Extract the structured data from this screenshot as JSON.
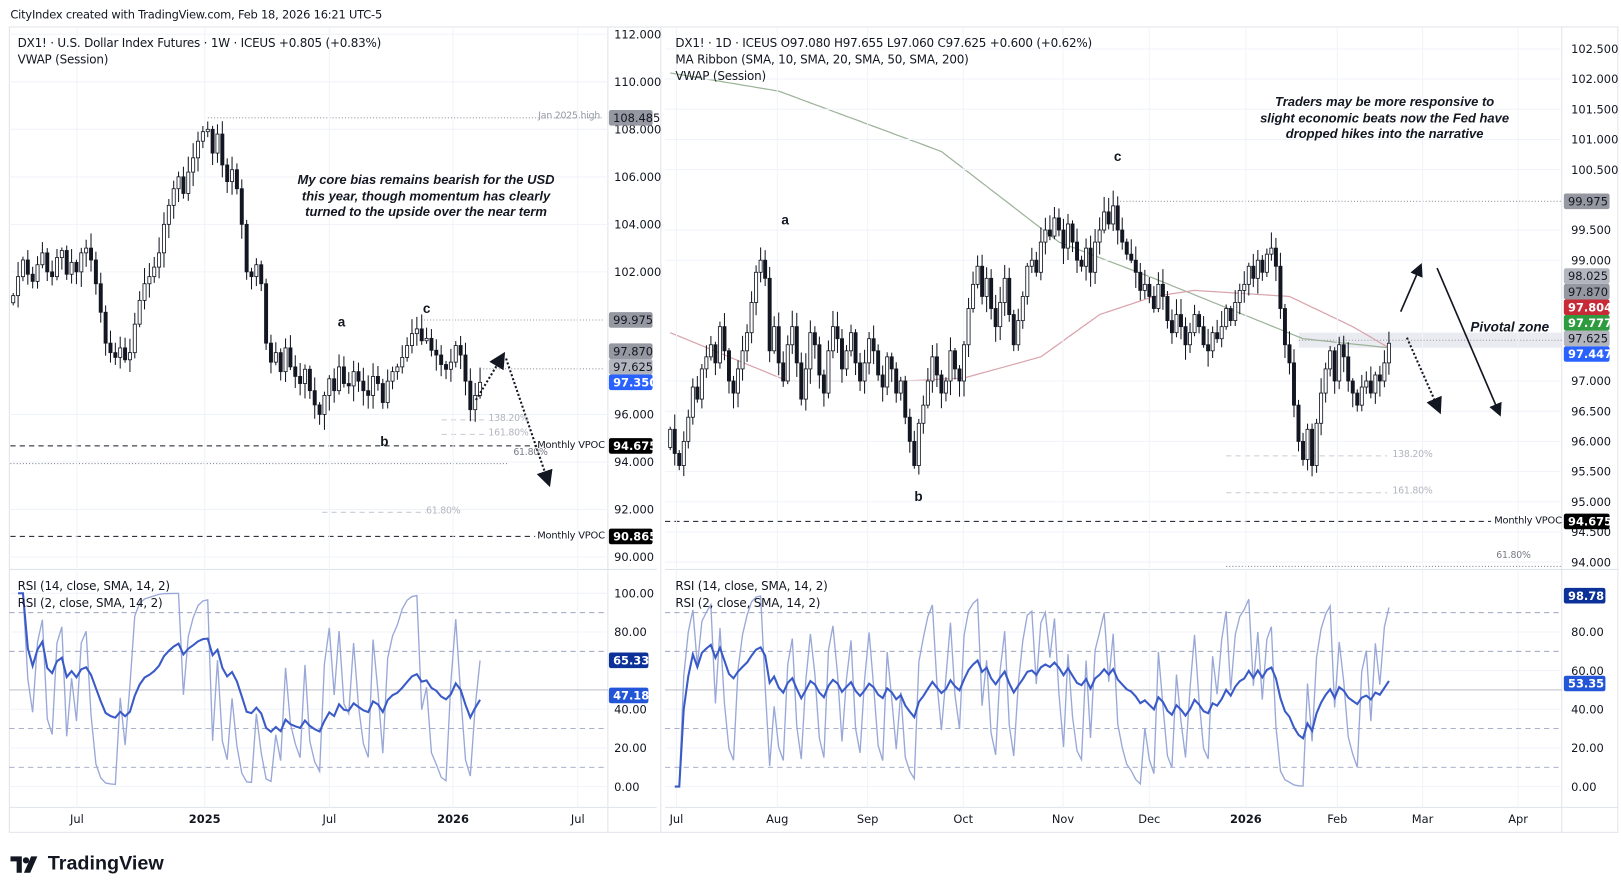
{
  "header": {
    "attribution": "CityIndex created with TradingView.com, Feb 18, 2026 16:21 UTC-5"
  },
  "footer": {
    "logo_text": "TradingView"
  },
  "left": {
    "title": "DX1! · U.S. Dollar Index Futures · 1W · ICEUS  +0.805 (+0.83%)",
    "indicator_vwap": "VWAP (Session)",
    "rsi14_label": "RSI (14, close, SMA, 14, 2)",
    "rsi2_label": "RSI (2, close, SMA, 14, 2)",
    "annotation": "My core bias remains bearish for the USD this year, though momentum has clearly turned to the upside over the near term",
    "wave_a": "a",
    "wave_b": "b",
    "wave_c": "c",
    "jan_high_label": "Jan 2025 high",
    "vpoc_label": "Monthly VPOC",
    "vpoc_label_2": "Monthly VPOC",
    "fib_138": "138.20%",
    "fib_161": "161.80%",
    "fib_618a": "61.80%",
    "fib_618b": "61.80%"
  },
  "right": {
    "title": "DX1! · 1D · ICEUS  O97.080  H97.655  L97.060  C97.625  +0.600 (+0.62%)",
    "indicator_ma": "MA Ribbon (SMA, 10, SMA, 20, SMA, 50, SMA, 200)",
    "indicator_vwap": "VWAP (Session)",
    "rsi14_label": "RSI (14, close, SMA, 14, 2)",
    "rsi2_label": "RSI (2, close, SMA, 14, 2)",
    "annotation": "Traders may be more responsive to slight economic beats now the Fed have dropped hikes into the narrative",
    "pivotal_label": "Pivotal zone",
    "wave_a": "a",
    "wave_b": "b",
    "wave_c": "c",
    "vpoc_label": "Monthly VPOC",
    "fib_138": "138.20%",
    "fib_161": "161.80%",
    "fib_618": "61.80%"
  },
  "chart_data": [
    {
      "type": "candlestick",
      "symbol": "DX1!",
      "interval": "1W",
      "price_axis_ticks": [
        "112.000",
        "110.000",
        "108.000",
        "106.000",
        "104.000",
        "102.000",
        "96.000",
        "94.000",
        "92.000",
        "90.000"
      ],
      "price_tick_values": [
        112,
        110,
        108,
        106,
        104,
        102,
        96,
        94,
        92,
        90
      ],
      "ylim": [
        90,
        112
      ],
      "time_axis": [
        {
          "label": "Jul",
          "bold": false
        },
        {
          "label": "2025",
          "bold": true
        },
        {
          "label": "Jul",
          "bold": false
        },
        {
          "label": "2026",
          "bold": true
        },
        {
          "label": "Jul",
          "bold": false
        }
      ],
      "closes": [
        101.0,
        101.8,
        102.5,
        101.9,
        101.6,
        102.3,
        102.8,
        102.0,
        101.8,
        102.6,
        102.9,
        101.9,
        102.4,
        102.0,
        102.8,
        103.0,
        102.5,
        101.5,
        100.3,
        99.0,
        98.6,
        98.4,
        98.8,
        98.3,
        98.6,
        99.8,
        100.8,
        101.5,
        101.8,
        102.2,
        102.8,
        104.0,
        104.8,
        105.5,
        106.0,
        105.3,
        106.2,
        106.8,
        107.5,
        107.9,
        108.0,
        107.0,
        107.8,
        106.5,
        105.8,
        106.3,
        105.5,
        104.0,
        102.0,
        101.8,
        102.3,
        101.5,
        99.0,
        98.2,
        98.6,
        97.8,
        98.8,
        98.0,
        97.6,
        97.3,
        97.9,
        97.0,
        96.4,
        96.0,
        96.8,
        97.5,
        97.0,
        98.0,
        97.3,
        97.2,
        97.8,
        97.4,
        97.0,
        96.8,
        97.6,
        97.3,
        96.5,
        97.4,
        97.8,
        98.0,
        98.4,
        98.9,
        99.4,
        99.6,
        99.1,
        99.2,
        98.7,
        98.5,
        98.1,
        97.9,
        98.2,
        98.9,
        98.5,
        97.4,
        96.2,
        96.8,
        97.35
      ],
      "levels": [
        {
          "name": "jan-2025-high",
          "value": 108.485,
          "style": "dotted"
        },
        {
          "name": "wave-c-high",
          "value": 99.975,
          "style": "dotted"
        },
        {
          "name": "monthly-vpoc",
          "value": 94.675,
          "style": "dashed"
        },
        {
          "name": "monthly-vpoc-2",
          "value": 90.865,
          "style": "dashed"
        },
        {
          "name": "fib-61.8",
          "value": 93.93,
          "style": "dotted"
        },
        {
          "name": "fib-138.2",
          "value": 95.77
        },
        {
          "name": "fib-161.8",
          "value": 95.16
        },
        {
          "name": "fib-61.8-b",
          "value": 91.88
        }
      ],
      "price_badges": [
        {
          "value": "108.485",
          "price": 108.485,
          "bg": "#9598a1",
          "fg": "#131722"
        },
        {
          "value": "99.975",
          "price": 99.975,
          "bg": "#9598a1",
          "fg": "#131722"
        },
        {
          "value": "97.870",
          "price": 97.87,
          "bg": "#9598a1",
          "fg": "#131722"
        },
        {
          "value": "97.625",
          "price": 97.625,
          "bg": "#b2b5be",
          "fg": "#131722"
        },
        {
          "value": "97.350",
          "price": 97.35,
          "bg": "#2962ff",
          "fg": "#ffffff"
        },
        {
          "value": "94.675",
          "price": 94.675,
          "bg": "#000000",
          "fg": "#ffffff"
        },
        {
          "value": "90.865",
          "price": 90.865,
          "bg": "#000000",
          "fg": "#ffffff"
        }
      ],
      "rsi_axis_ticks": [
        "100.00",
        "80.00",
        "40.00",
        "20.00",
        "0.00"
      ],
      "rsi_tick_values": [
        100,
        80,
        40,
        20,
        0
      ],
      "rsi_badges": [
        {
          "value": "65.33",
          "rsi": 65.33,
          "bg": "#0c3299",
          "fg": "#ffffff"
        },
        {
          "value": "47.18",
          "rsi": 47.18,
          "bg": "#2256d6",
          "fg": "#ffffff"
        }
      ],
      "rsi_levels": [
        90,
        70,
        50,
        30,
        10
      ]
    },
    {
      "type": "candlestick",
      "symbol": "DX1!",
      "interval": "1D",
      "ohlc_last": {
        "open": 97.08,
        "high": 97.655,
        "low": 97.06,
        "close": 97.625
      },
      "price_axis_ticks": [
        "102.500",
        "102.000",
        "101.500",
        "101.000",
        "100.500",
        "99.500",
        "99.000",
        "97.000",
        "96.500",
        "96.000",
        "95.500",
        "95.000",
        "94.500",
        "94.000"
      ],
      "price_tick_values": [
        102.5,
        102,
        101.5,
        101,
        100.5,
        99.5,
        99,
        97,
        96.5,
        96,
        95.5,
        95,
        94.5,
        94
      ],
      "ylim": [
        94,
        102.5
      ],
      "time_axis": [
        {
          "label": "Jul",
          "bold": false
        },
        {
          "label": "Aug",
          "bold": false
        },
        {
          "label": "Sep",
          "bold": false
        },
        {
          "label": "Oct",
          "bold": false
        },
        {
          "label": "Nov",
          "bold": false
        },
        {
          "label": "Dec",
          "bold": false
        },
        {
          "label": "2026",
          "bold": true
        },
        {
          "label": "Feb",
          "bold": false
        },
        {
          "label": "Mar",
          "bold": false
        },
        {
          "label": "Apr",
          "bold": false
        }
      ],
      "closes": [
        96.2,
        95.8,
        95.6,
        96.0,
        96.4,
        96.9,
        96.7,
        97.2,
        97.4,
        97.6,
        97.3,
        97.9,
        97.5,
        97.0,
        96.8,
        97.2,
        97.5,
        97.8,
        98.3,
        98.8,
        99.0,
        98.7,
        97.5,
        97.9,
        97.3,
        97.0,
        97.6,
        97.9,
        97.3,
        96.7,
        97.2,
        97.8,
        97.6,
        97.1,
        96.8,
        97.5,
        97.9,
        97.7,
        97.2,
        97.5,
        97.8,
        97.3,
        97.0,
        97.3,
        97.7,
        97.5,
        97.1,
        96.9,
        97.4,
        97.2,
        96.8,
        97.0,
        96.4,
        96.0,
        95.6,
        96.3,
        96.6,
        97.0,
        97.4,
        97.1,
        96.8,
        97.0,
        97.5,
        97.2,
        97.0,
        97.6,
        98.2,
        98.6,
        98.9,
        98.4,
        98.7,
        98.2,
        97.9,
        98.3,
        98.7,
        98.1,
        97.6,
        98.0,
        98.4,
        98.9,
        99.0,
        98.8,
        99.3,
        99.5,
        99.4,
        99.7,
        99.5,
        99.2,
        99.6,
        99.3,
        99.0,
        98.9,
        99.2,
        98.8,
        99.3,
        99.5,
        99.8,
        99.6,
        99.9,
        99.5,
        99.3,
        99.1,
        99.0,
        98.8,
        98.5,
        98.6,
        98.4,
        98.2,
        98.6,
        98.4,
        98.0,
        97.8,
        98.1,
        97.9,
        97.6,
        97.8,
        98.1,
        97.9,
        97.6,
        97.5,
        97.8,
        97.7,
        97.9,
        98.2,
        98.0,
        98.3,
        98.5,
        98.6,
        98.9,
        98.7,
        99.0,
        98.8,
        99.1,
        99.2,
        98.9,
        98.2,
        97.6,
        97.3,
        96.6,
        96.0,
        95.7,
        96.2,
        95.6,
        96.3,
        96.8,
        97.2,
        97.5,
        97.0,
        97.6,
        97.4,
        97.0,
        96.8,
        96.6,
        96.9,
        97.0,
        96.8,
        97.1,
        97.0,
        97.3,
        97.625
      ],
      "sma200_path": [
        [
          0,
          102.1
        ],
        [
          24,
          101.8
        ],
        [
          60,
          100.8
        ],
        [
          86,
          99.3
        ],
        [
          107,
          98.7
        ],
        [
          140,
          97.7
        ],
        [
          159,
          97.55
        ]
      ],
      "sma50_path": [
        [
          0,
          97.8
        ],
        [
          13,
          97.4
        ],
        [
          26,
          97.0
        ],
        [
          52,
          97.0
        ],
        [
          65,
          97.05
        ],
        [
          82,
          97.4
        ],
        [
          95,
          98.1
        ],
        [
          107,
          98.4
        ],
        [
          116,
          98.5
        ],
        [
          137,
          98.4
        ],
        [
          151,
          97.9
        ],
        [
          159,
          97.55
        ]
      ],
      "pivotal_zone": [
        97.55,
        97.8
      ],
      "levels": [
        {
          "name": "wave-c-high",
          "value": 99.975,
          "style": "dotted"
        },
        {
          "name": "monthly-vpoc",
          "value": 94.675,
          "style": "dashed"
        },
        {
          "name": "fib-138.2",
          "value": 95.76
        },
        {
          "name": "fib-161.8",
          "value": 95.15
        },
        {
          "name": "fib-61.8",
          "value": 93.93
        }
      ],
      "price_badges": [
        {
          "value": "99.975",
          "price": 99.975,
          "bg": "#9598a1",
          "fg": "#131722"
        },
        {
          "value": "98.025",
          "price": 98.025,
          "bg": "#b2b5be",
          "fg": "#131722"
        },
        {
          "value": "97.870",
          "price": 97.87,
          "bg": "#9598a1",
          "fg": "#131722"
        },
        {
          "value": "97.804",
          "price": 97.804,
          "bg": "#c62b37",
          "fg": "#ffffff"
        },
        {
          "value": "97.777",
          "price": 97.777,
          "bg": "#2e9b3f",
          "fg": "#ffffff"
        },
        {
          "value": "97.625",
          "price": 97.625,
          "bg": "#b2b5be",
          "fg": "#131722"
        },
        {
          "value": "97.447",
          "price": 97.447,
          "bg": "#2962ff",
          "fg": "#ffffff"
        },
        {
          "value": "94.675",
          "price": 94.675,
          "bg": "#000000",
          "fg": "#ffffff"
        }
      ],
      "rsi_axis_ticks": [
        "80.00",
        "60.00",
        "40.00",
        "20.00",
        "0.00"
      ],
      "rsi_tick_values": [
        80,
        60,
        40,
        20,
        0
      ],
      "rsi_badges": [
        {
          "value": "98.78",
          "rsi": 98.78,
          "bg": "#0c3299",
          "fg": "#ffffff"
        },
        {
          "value": "53.35",
          "rsi": 53.35,
          "bg": "#2256d6",
          "fg": "#ffffff"
        }
      ],
      "rsi_levels": [
        90,
        70,
        50,
        30,
        10
      ],
      "colors": {
        "sma200": "#9db39a",
        "sma50": "#d9a4ac",
        "rsi14": "#3a5bc7",
        "rsi2": "#9aa8d8",
        "pivotal_zone": "#e3e6ec"
      }
    }
  ]
}
